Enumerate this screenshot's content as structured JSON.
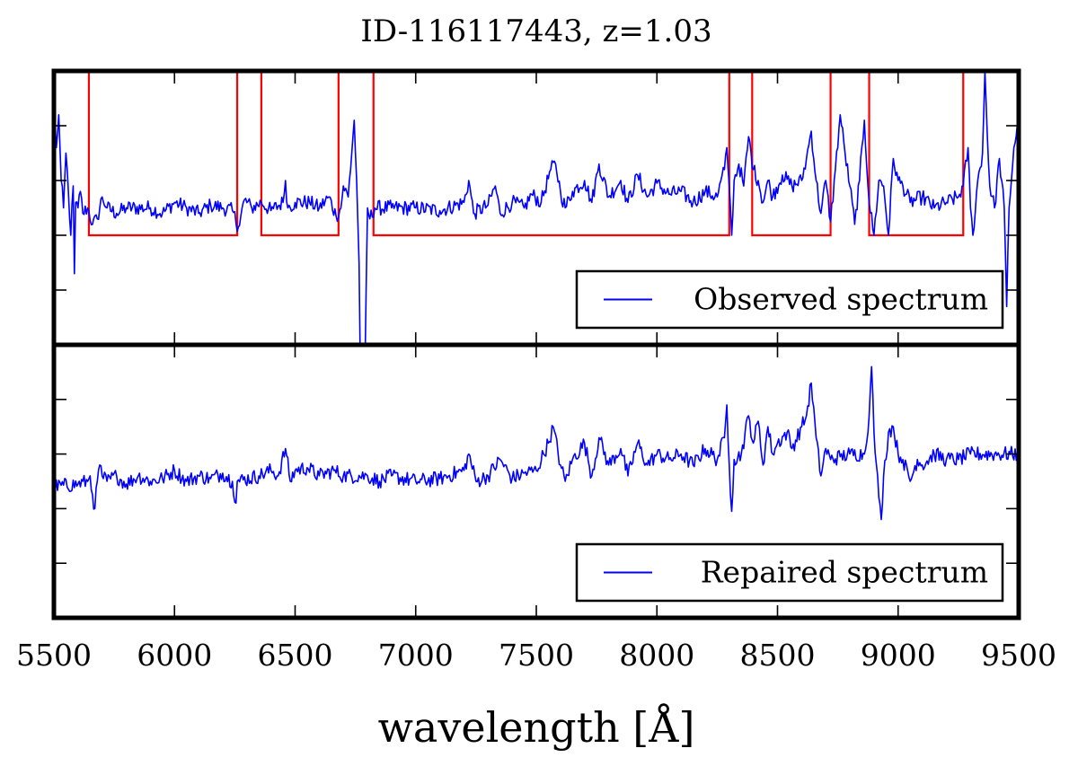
{
  "chart_data": {
    "type": "line",
    "title": "ID-116117443, z=1.03",
    "xlabel": "wavelength [Å]",
    "ylabel": "",
    "xlim": [
      5500,
      9500
    ],
    "x_ticks": [
      5500,
      6000,
      6500,
      7000,
      7500,
      8000,
      8500,
      9000,
      9500
    ],
    "x_tick_labels": [
      "5500",
      "6000",
      "6500",
      "7000",
      "7500",
      "8000",
      "8500",
      "9000",
      "9500"
    ],
    "panels": [
      {
        "name": "observed",
        "legend": "Observed spectrum",
        "legend_position": "lower-right",
        "ylim": [
          -2.0,
          3.0
        ],
        "series_color": "#0000ff",
        "mask_color": "#ff0000",
        "mask_high": 3.0,
        "mask_low": 0.0,
        "mask_windows": [
          [
            5645,
            6260
          ],
          [
            6360,
            6680
          ],
          [
            6825,
            8300
          ],
          [
            8395,
            8720
          ],
          [
            8880,
            9270
          ]
        ],
        "anchors": [
          [
            5500,
            2.4
          ],
          [
            5510,
            1.6
          ],
          [
            5520,
            2.2
          ],
          [
            5530,
            1.0
          ],
          [
            5540,
            0.5
          ],
          [
            5550,
            1.5
          ],
          [
            5560,
            0.8
          ],
          [
            5570,
            0.0
          ],
          [
            5580,
            0.9
          ],
          [
            5585,
            -0.7
          ],
          [
            5590,
            0.6
          ],
          [
            5600,
            0.5
          ],
          [
            5610,
            0.8
          ],
          [
            5620,
            0.4
          ],
          [
            5640,
            0.5
          ],
          [
            5660,
            0.2
          ],
          [
            5680,
            0.3
          ],
          [
            5700,
            0.7
          ],
          [
            5720,
            0.5
          ],
          [
            5760,
            0.4
          ],
          [
            5800,
            0.5
          ],
          [
            5900,
            0.5
          ],
          [
            5950,
            0.4
          ],
          [
            6000,
            0.6
          ],
          [
            6050,
            0.5
          ],
          [
            6100,
            0.4
          ],
          [
            6150,
            0.55
          ],
          [
            6200,
            0.5
          ],
          [
            6240,
            0.45
          ],
          [
            6265,
            0.15
          ],
          [
            6290,
            0.65
          ],
          [
            6320,
            0.5
          ],
          [
            6360,
            0.6
          ],
          [
            6400,
            0.45
          ],
          [
            6450,
            0.6
          ],
          [
            6460,
            1.0
          ],
          [
            6470,
            0.5
          ],
          [
            6500,
            0.6
          ],
          [
            6560,
            0.6
          ],
          [
            6600,
            0.5
          ],
          [
            6640,
            0.7
          ],
          [
            6670,
            0.35
          ],
          [
            6690,
            0.5
          ],
          [
            6700,
            0.9
          ],
          [
            6720,
            0.7
          ],
          [
            6740,
            1.8
          ],
          [
            6745,
            2.1
          ],
          [
            6755,
            1.0
          ],
          [
            6765,
            -0.5
          ],
          [
            6770,
            -2.3
          ],
          [
            6790,
            -2.3
          ],
          [
            6800,
            0.5
          ],
          [
            6810,
            0.3
          ],
          [
            6830,
            0.5
          ],
          [
            6900,
            0.5
          ],
          [
            7000,
            0.5
          ],
          [
            7100,
            0.45
          ],
          [
            7200,
            0.6
          ],
          [
            7220,
            1.0
          ],
          [
            7240,
            0.4
          ],
          [
            7300,
            0.55
          ],
          [
            7330,
            0.9
          ],
          [
            7350,
            0.4
          ],
          [
            7400,
            0.6
          ],
          [
            7450,
            0.5
          ],
          [
            7480,
            0.75
          ],
          [
            7520,
            0.6
          ],
          [
            7560,
            1.2
          ],
          [
            7580,
            1.3
          ],
          [
            7600,
            0.8
          ],
          [
            7620,
            0.5
          ],
          [
            7650,
            0.8
          ],
          [
            7700,
            1.0
          ],
          [
            7730,
            0.6
          ],
          [
            7760,
            1.3
          ],
          [
            7800,
            0.7
          ],
          [
            7850,
            1.0
          ],
          [
            7880,
            0.6
          ],
          [
            7920,
            1.1
          ],
          [
            7960,
            0.7
          ],
          [
            8000,
            0.95
          ],
          [
            8050,
            0.75
          ],
          [
            8100,
            0.8
          ],
          [
            8150,
            0.6
          ],
          [
            8200,
            0.8
          ],
          [
            8250,
            0.7
          ],
          [
            8280,
            1.2
          ],
          [
            8290,
            1.6
          ],
          [
            8300,
            0.9
          ],
          [
            8310,
            0.0
          ],
          [
            8320,
            1.0
          ],
          [
            8340,
            1.3
          ],
          [
            8360,
            0.9
          ],
          [
            8380,
            1.8
          ],
          [
            8400,
            1.2
          ],
          [
            8420,
            1.0
          ],
          [
            8440,
            0.6
          ],
          [
            8460,
            1.0
          ],
          [
            8480,
            0.7
          ],
          [
            8520,
            1.1
          ],
          [
            8560,
            0.9
          ],
          [
            8600,
            1.0
          ],
          [
            8620,
            1.4
          ],
          [
            8640,
            1.9
          ],
          [
            8660,
            1.0
          ],
          [
            8680,
            0.4
          ],
          [
            8700,
            1.0
          ],
          [
            8720,
            0.25
          ],
          [
            8740,
            1.2
          ],
          [
            8760,
            2.2
          ],
          [
            8780,
            1.5
          ],
          [
            8800,
            0.9
          ],
          [
            8820,
            0.2
          ],
          [
            8840,
            1.0
          ],
          [
            8860,
            2.1
          ],
          [
            8880,
            0.6
          ],
          [
            8900,
            0.0
          ],
          [
            8920,
            1.0
          ],
          [
            8940,
            0.9
          ],
          [
            8960,
            0.0
          ],
          [
            8980,
            1.4
          ],
          [
            9000,
            1.0
          ],
          [
            9020,
            0.9
          ],
          [
            9050,
            0.6
          ],
          [
            9100,
            0.7
          ],
          [
            9150,
            0.5
          ],
          [
            9200,
            0.6
          ],
          [
            9250,
            0.7
          ],
          [
            9270,
            0.9
          ],
          [
            9290,
            1.6
          ],
          [
            9300,
            0.5
          ],
          [
            9310,
            0.0
          ],
          [
            9330,
            1.0
          ],
          [
            9350,
            1.5
          ],
          [
            9360,
            3.0
          ],
          [
            9370,
            1.8
          ],
          [
            9380,
            0.9
          ],
          [
            9400,
            0.5
          ],
          [
            9420,
            1.4
          ],
          [
            9440,
            0.5
          ],
          [
            9450,
            -1.3
          ],
          [
            9460,
            0.5
          ],
          [
            9480,
            1.6
          ],
          [
            9500,
            2.1
          ]
        ]
      },
      {
        "name": "repaired",
        "legend": "Repaired spectrum",
        "legend_position": "lower-right",
        "ylim": [
          -2.0,
          3.0
        ],
        "series_color": "#0000ff",
        "anchors": [
          [
            5500,
            0.4
          ],
          [
            5600,
            0.45
          ],
          [
            5640,
            0.5
          ],
          [
            5650,
            0.6
          ],
          [
            5660,
            0.25
          ],
          [
            5670,
            0.0
          ],
          [
            5680,
            0.5
          ],
          [
            5690,
            0.8
          ],
          [
            5700,
            0.6
          ],
          [
            5720,
            0.5
          ],
          [
            5760,
            0.6
          ],
          [
            5800,
            0.45
          ],
          [
            5850,
            0.6
          ],
          [
            5900,
            0.5
          ],
          [
            5950,
            0.55
          ],
          [
            6000,
            0.7
          ],
          [
            6050,
            0.5
          ],
          [
            6100,
            0.6
          ],
          [
            6150,
            0.55
          ],
          [
            6200,
            0.65
          ],
          [
            6240,
            0.5
          ],
          [
            6255,
            0.1
          ],
          [
            6260,
            0.5
          ],
          [
            6350,
            0.6
          ],
          [
            6400,
            0.7
          ],
          [
            6430,
            0.6
          ],
          [
            6460,
            1.1
          ],
          [
            6480,
            0.5
          ],
          [
            6500,
            0.7
          ],
          [
            6550,
            0.75
          ],
          [
            6600,
            0.6
          ],
          [
            6660,
            0.7
          ],
          [
            6700,
            0.6
          ],
          [
            6800,
            0.6
          ],
          [
            6850,
            0.5
          ],
          [
            6900,
            0.6
          ],
          [
            7000,
            0.5
          ],
          [
            7100,
            0.55
          ],
          [
            7200,
            0.7
          ],
          [
            7220,
            1.0
          ],
          [
            7250,
            0.5
          ],
          [
            7300,
            0.6
          ],
          [
            7350,
            0.9
          ],
          [
            7400,
            0.55
          ],
          [
            7450,
            0.65
          ],
          [
            7500,
            0.7
          ],
          [
            7550,
            1.2
          ],
          [
            7570,
            1.5
          ],
          [
            7600,
            0.8
          ],
          [
            7620,
            0.5
          ],
          [
            7650,
            0.9
          ],
          [
            7700,
            1.2
          ],
          [
            7730,
            0.6
          ],
          [
            7760,
            1.3
          ],
          [
            7800,
            0.8
          ],
          [
            7850,
            1.1
          ],
          [
            7880,
            0.6
          ],
          [
            7920,
            1.2
          ],
          [
            7960,
            0.8
          ],
          [
            8000,
            1.0
          ],
          [
            8050,
            0.9
          ],
          [
            8100,
            1.0
          ],
          [
            8150,
            0.8
          ],
          [
            8200,
            1.1
          ],
          [
            8250,
            0.9
          ],
          [
            8280,
            1.3
          ],
          [
            8290,
            1.9
          ],
          [
            8300,
            0.8
          ],
          [
            8310,
            -0.05
          ],
          [
            8320,
            0.9
          ],
          [
            8350,
            1.0
          ],
          [
            8380,
            1.7
          ],
          [
            8400,
            1.2
          ],
          [
            8420,
            1.6
          ],
          [
            8440,
            0.8
          ],
          [
            8460,
            1.5
          ],
          [
            8480,
            1.0
          ],
          [
            8500,
            1.2
          ],
          [
            8540,
            1.4
          ],
          [
            8560,
            1.1
          ],
          [
            8600,
            1.5
          ],
          [
            8620,
            1.7
          ],
          [
            8640,
            2.3
          ],
          [
            8660,
            1.3
          ],
          [
            8680,
            0.6
          ],
          [
            8700,
            1.1
          ],
          [
            8720,
            0.9
          ],
          [
            8760,
            0.95
          ],
          [
            8800,
            1.0
          ],
          [
            8860,
            1.0
          ],
          [
            8880,
            1.7
          ],
          [
            8890,
            2.6
          ],
          [
            8900,
            1.4
          ],
          [
            8910,
            0.8
          ],
          [
            8920,
            0.2
          ],
          [
            8930,
            -0.2
          ],
          [
            8940,
            0.6
          ],
          [
            8960,
            1.4
          ],
          [
            8980,
            1.5
          ],
          [
            9000,
            1.0
          ],
          [
            9020,
            0.9
          ],
          [
            9050,
            0.5
          ],
          [
            9080,
            0.9
          ],
          [
            9100,
            0.8
          ],
          [
            9150,
            1.0
          ],
          [
            9200,
            0.9
          ],
          [
            9250,
            0.9
          ],
          [
            9300,
            1.0
          ],
          [
            9400,
            1.0
          ],
          [
            9500,
            1.0
          ]
        ]
      }
    ]
  }
}
